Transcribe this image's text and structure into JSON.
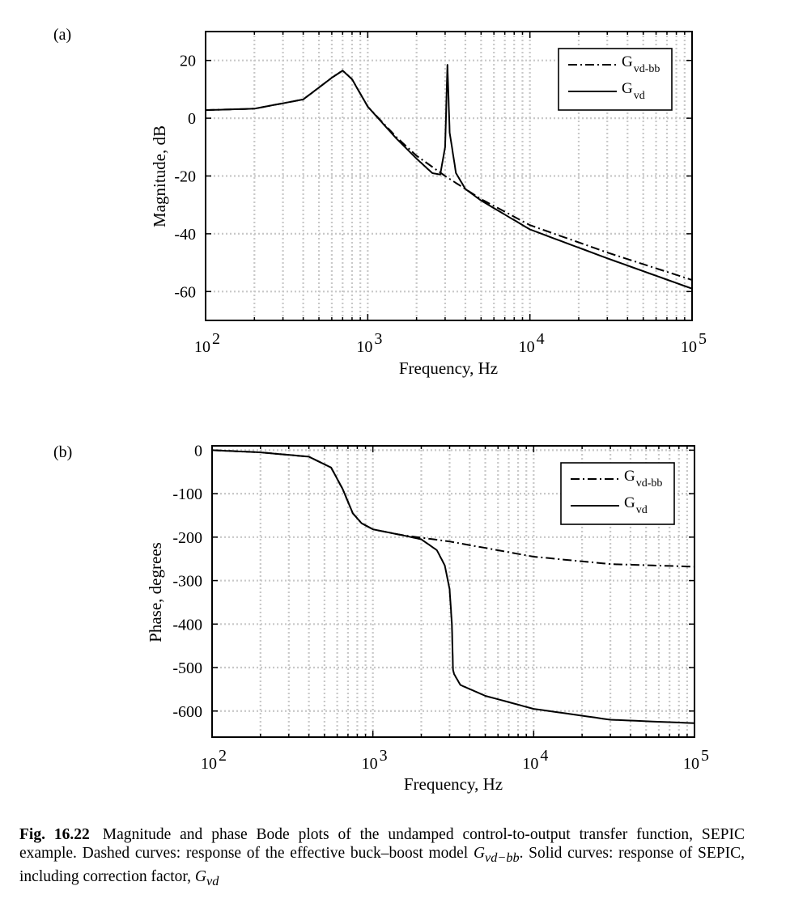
{
  "panels": [
    {
      "label": "(a)",
      "ylabel": "Magnitude, dB",
      "xlabel": "Frequency, Hz",
      "y_ticks": [
        "20",
        "0",
        "-20",
        "-40",
        "-60"
      ],
      "x_ticks": [
        {
          "base": "10",
          "exp": "2"
        },
        {
          "base": "10",
          "exp": "3"
        },
        {
          "base": "10",
          "exp": "4"
        },
        {
          "base": "10",
          "exp": "5"
        }
      ],
      "legend": [
        {
          "main": "G",
          "sub": "vd-bb",
          "style": "dashdot"
        },
        {
          "main": "G",
          "sub": "vd",
          "style": "solid"
        }
      ]
    },
    {
      "label": "(b)",
      "ylabel": "Phase, degrees",
      "xlabel": "Frequency, Hz",
      "y_ticks": [
        "0",
        "-100",
        "-200",
        "-300",
        "-400",
        "-500",
        "-600"
      ],
      "x_ticks": [
        {
          "base": "10",
          "exp": "2"
        },
        {
          "base": "10",
          "exp": "3"
        },
        {
          "base": "10",
          "exp": "4"
        },
        {
          "base": "10",
          "exp": "5"
        }
      ],
      "legend": [
        {
          "main": "G",
          "sub": "vd-bb",
          "style": "dashdot"
        },
        {
          "main": "G",
          "sub": "vd",
          "style": "solid"
        }
      ]
    }
  ],
  "caption": {
    "fig_number": "Fig. 16.22",
    "text_1": "Magnitude and phase Bode plots of the undamped control-to-output transfer function, SEPIC example. Dashed curves: response of the effective buck–boost model ",
    "sym_1": "G",
    "sym_1_sub": "vd−bb",
    "text_2": ". Solid curves: response of SEPIC, including correction factor, ",
    "sym_2": "G",
    "sym_2_sub": "vd"
  },
  "chart_data": [
    {
      "type": "line",
      "xscale": "log",
      "xlim": [
        100,
        100000
      ],
      "ylim": [
        -70,
        30
      ],
      "grid": true,
      "legend_position": "top-right",
      "series": [
        {
          "name": "G_vd-bb",
          "x": [
            100,
            200,
            400,
            600,
            700,
            800,
            1000,
            1500,
            2000,
            3000,
            5000,
            10000,
            30000,
            100000
          ],
          "y": [
            2.8,
            3.3,
            6.5,
            14,
            16.5,
            13.5,
            4,
            -6.5,
            -13,
            -20,
            -28,
            -37,
            -46.5,
            -56
          ]
        },
        {
          "name": "G_vd",
          "x": [
            100,
            200,
            400,
            600,
            700,
            800,
            1000,
            1500,
            2000,
            2500,
            2800,
            3000,
            3100,
            3200,
            3500,
            4000,
            5000,
            10000,
            30000,
            100000
          ],
          "y": [
            2.8,
            3.3,
            6.5,
            14,
            16.5,
            13.5,
            4,
            -7,
            -14,
            -19,
            -19.5,
            -10,
            18.5,
            -5,
            -19,
            -24.5,
            -28.5,
            -38.5,
            -48.5,
            -59
          ]
        }
      ]
    },
    {
      "type": "line",
      "xscale": "log",
      "xlim": [
        100,
        100000
      ],
      "ylim": [
        -660,
        10
      ],
      "grid": true,
      "legend_position": "top-right",
      "series": [
        {
          "name": "G_vd-bb",
          "x": [
            100,
            200,
            400,
            550,
            650,
            750,
            850,
            1000,
            1500,
            3000,
            10000,
            30000,
            100000
          ],
          "y": [
            0,
            -5,
            -15,
            -40,
            -90,
            -145,
            -168,
            -182,
            -195,
            -210,
            -245,
            -262,
            -268
          ]
        },
        {
          "name": "G_vd",
          "x": [
            100,
            200,
            400,
            550,
            650,
            750,
            850,
            1000,
            1500,
            2000,
            2500,
            2800,
            3000,
            3100,
            3150,
            3200,
            3500,
            5000,
            10000,
            30000,
            100000
          ],
          "y": [
            0,
            -5,
            -15,
            -40,
            -90,
            -145,
            -168,
            -182,
            -195,
            -205,
            -230,
            -265,
            -320,
            -400,
            -505,
            -515,
            -540,
            -565,
            -595,
            -620,
            -628
          ]
        }
      ]
    }
  ]
}
